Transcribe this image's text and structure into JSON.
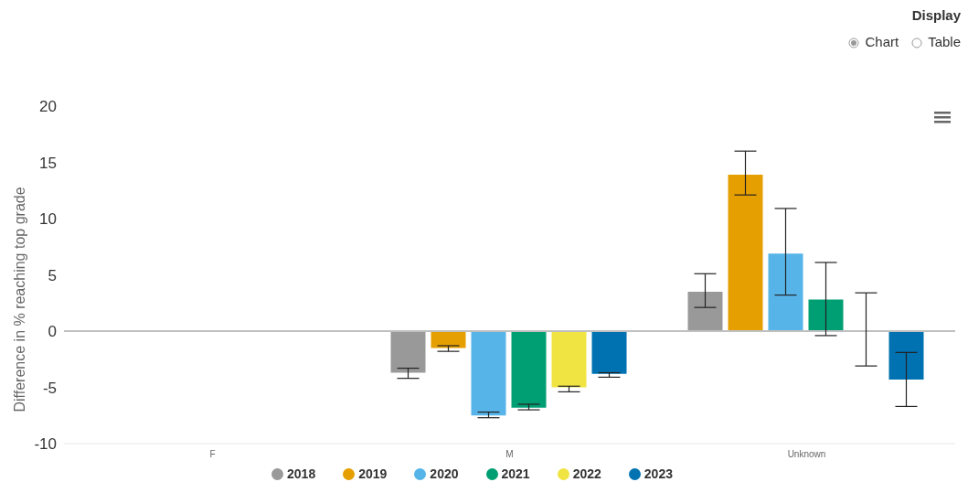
{
  "chart_data": {
    "type": "bar",
    "ylabel": "Difference in % reaching top grade",
    "categories": [
      "F",
      "M",
      "Unknown"
    ],
    "series": [
      {
        "name": "2018",
        "color": "#999999",
        "values": [
          null,
          -3.7,
          3.5
        ],
        "errors": [
          null,
          [
            -4.2,
            -3.3
          ],
          [
            2.1,
            5.1
          ]
        ]
      },
      {
        "name": "2019",
        "color": "#e69f00",
        "values": [
          null,
          -1.5,
          13.9
        ],
        "errors": [
          null,
          [
            -1.8,
            -1.3
          ],
          [
            12.1,
            16.0
          ]
        ]
      },
      {
        "name": "2020",
        "color": "#56b4e9",
        "values": [
          null,
          -7.5,
          6.9
        ],
        "errors": [
          null,
          [
            -7.7,
            -7.2
          ],
          [
            3.2,
            10.9
          ]
        ]
      },
      {
        "name": "2021",
        "color": "#009e73",
        "values": [
          null,
          -6.8,
          2.8
        ],
        "errors": [
          null,
          [
            -7.0,
            -6.5
          ],
          [
            -0.4,
            6.1
          ]
        ]
      },
      {
        "name": "2022",
        "color": "#f0e442",
        "values": [
          null,
          -5.0,
          0
        ],
        "errors": [
          null,
          [
            -5.4,
            -4.9
          ],
          [
            -3.1,
            3.4
          ]
        ]
      },
      {
        "name": "2023",
        "color": "#0072b2",
        "values": [
          null,
          -3.8,
          -4.3
        ],
        "errors": [
          null,
          [
            -4.1,
            -3.7
          ],
          [
            -6.7,
            -1.9
          ]
        ]
      }
    ],
    "ylim": [
      -10,
      20
    ],
    "yticks": [
      -10,
      -5,
      0,
      5,
      10,
      15,
      20
    ],
    "grid": false,
    "ref_lines": [
      {
        "axis": "y",
        "value": 0,
        "color": "#c0c0c0"
      }
    ],
    "legend": "bottom",
    "annotations": [
      "Display",
      "Chart",
      "Table"
    ]
  }
}
